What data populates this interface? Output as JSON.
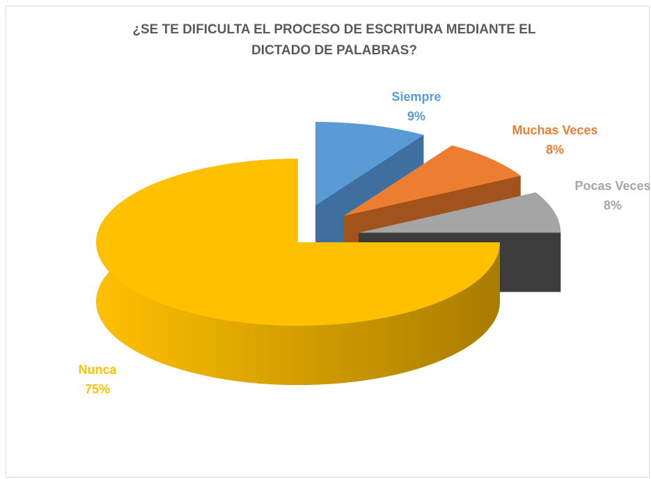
{
  "chart_data": {
    "type": "pie",
    "title": "¿SE TE DIFICULTA EL PROCESO DE ESCRITURA MEDIANTE EL DICTADO DE PALABRAS?",
    "categories": [
      "Siempre",
      "Muchas Veces",
      "Pocas Veces",
      "Nunca"
    ],
    "values": [
      9,
      8,
      8,
      75
    ],
    "value_labels": [
      "9%",
      "8%",
      "8%",
      "75%"
    ],
    "colors": [
      "#5B9BD5",
      "#ED7D31",
      "#A5A5A5",
      "#FFC000"
    ],
    "side_colors": [
      "#3E6F9E",
      "#A2521B",
      "#3C3C3C",
      "#A87C00"
    ],
    "label_colors": [
      "#5B9BD5",
      "#ED7D31",
      "#A5A5A5",
      "#FFC000"
    ]
  }
}
